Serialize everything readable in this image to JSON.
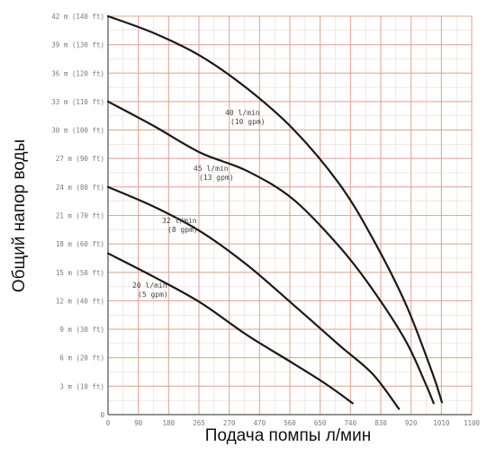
{
  "chart_data": {
    "type": "line",
    "xlabel": "Подача помпы л/мин",
    "ylabel": "Общий напор воды",
    "xlim": [
      0,
      1100
    ],
    "ylim": [
      0,
      42
    ],
    "x_ticks": [
      "0",
      "90",
      "180",
      "265",
      "270",
      "470",
      "560",
      "650",
      "740",
      "830",
      "920",
      "1010",
      "1100"
    ],
    "y_ticks": [
      "3 m (10 ft)",
      "6 m (20 ft)",
      "9 m (30 ft)",
      "12 m (40 ft)",
      "15 m (50 ft)",
      "18 m (60 ft)",
      "21 m (70 ft)",
      "24 m (80 ft)",
      "27 m (90 ft)",
      "30 m (100 ft)",
      "33 m (110 ft)",
      "36 m (120 ft)",
      "39 m (130 ft)",
      "42 m (140 ft)"
    ],
    "series": [
      {
        "name": "40 l/min (10 gpm)",
        "x": [
          0,
          140,
          280,
          420,
          560,
          700,
          800,
          900,
          980,
          1010
        ],
        "y": [
          42,
          40.2,
          37.8,
          34.4,
          30.1,
          24.3,
          18.6,
          11.7,
          4.5,
          1.3
        ]
      },
      {
        "name": "45 l/min (13 gpm)",
        "x": [
          0,
          140,
          280,
          420,
          560,
          700,
          800,
          900,
          960,
          985
        ],
        "y": [
          33,
          30.4,
          27.6,
          25.7,
          22.7,
          17.7,
          13.2,
          7.8,
          3.3,
          1.2
        ]
      },
      {
        "name": "32 l/min (8 gpm)",
        "x": [
          0,
          140,
          280,
          420,
          560,
          700,
          800,
          880
        ],
        "y": [
          24,
          21.9,
          19.3,
          15.8,
          11.6,
          7.3,
          4.3,
          0.6
        ]
      },
      {
        "name": "20 l/min (5 gpm)",
        "x": [
          0,
          140,
          280,
          420,
          560,
          660,
          740
        ],
        "y": [
          17,
          14.5,
          11.8,
          8.4,
          5.4,
          3.2,
          1.2
        ]
      }
    ],
    "grid": true,
    "colors": {
      "line": "#1a1a1a",
      "grid": "#e0a090",
      "tick_text": "#7a7a7a",
      "background": "#ffffff"
    }
  }
}
